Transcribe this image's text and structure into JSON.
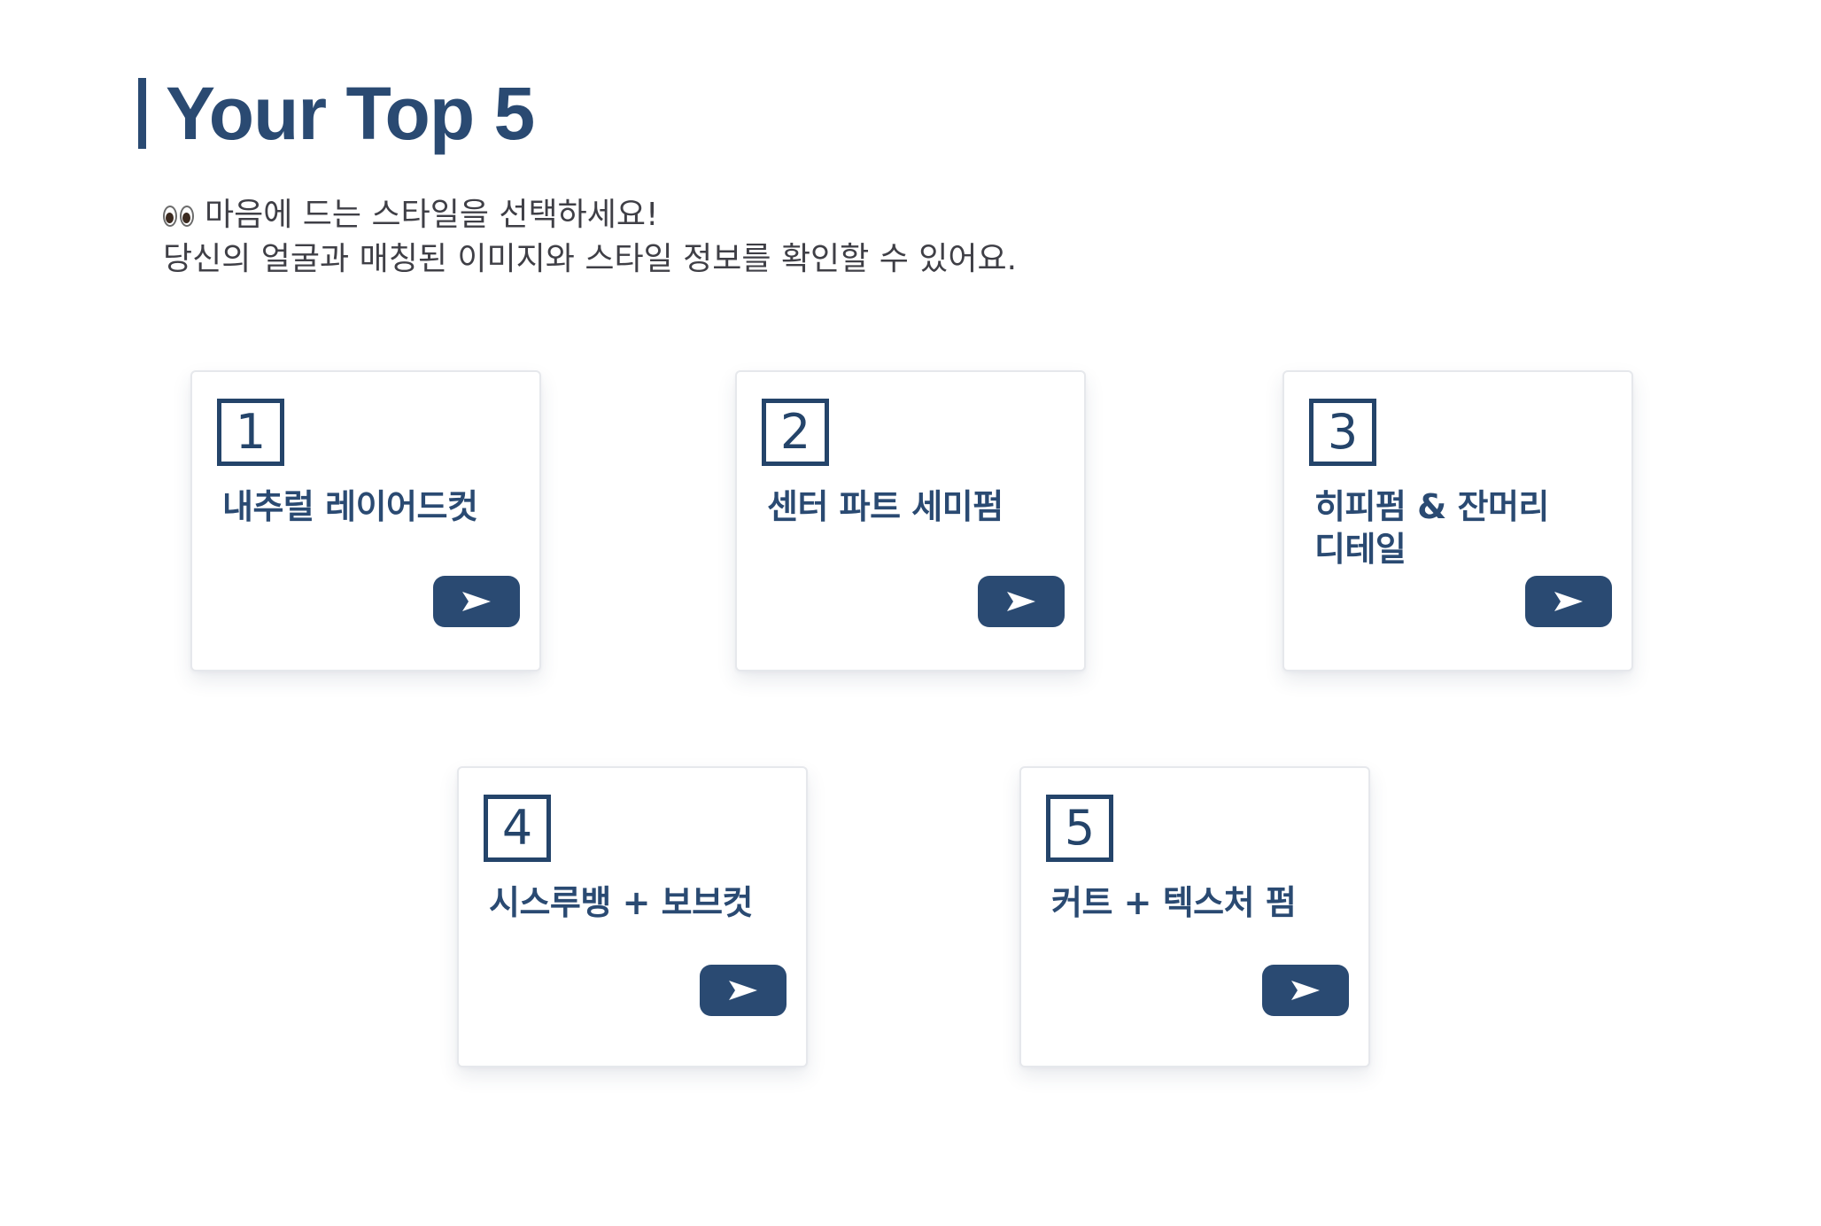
{
  "header": {
    "title": "Your Top 5",
    "subtitle_line1": "마음에 드는 스타일을 선택하세요!",
    "subtitle_line2": "당신의 얼굴과 매칭된 이미지와 스타일 정보를 확인할 수 있어요.",
    "subtitle_icon": "eyes-emoji"
  },
  "colors": {
    "accent": "#2a4a72",
    "text": "#3f3f46",
    "card_border": "#e6e8ec"
  },
  "cards": [
    {
      "rank": "1",
      "title": "내추럴 레이어드컷",
      "button_icon": "send-arrow-icon"
    },
    {
      "rank": "2",
      "title": "센터 파트 세미펌",
      "button_icon": "send-arrow-icon"
    },
    {
      "rank": "3",
      "title": "히피펌 & 잔머리 디테일",
      "button_icon": "send-arrow-icon"
    },
    {
      "rank": "4",
      "title": "시스루뱅 + 보브컷",
      "button_icon": "send-arrow-icon"
    },
    {
      "rank": "5",
      "title": "커트 + 텍스처 펌",
      "button_icon": "send-arrow-icon"
    }
  ]
}
